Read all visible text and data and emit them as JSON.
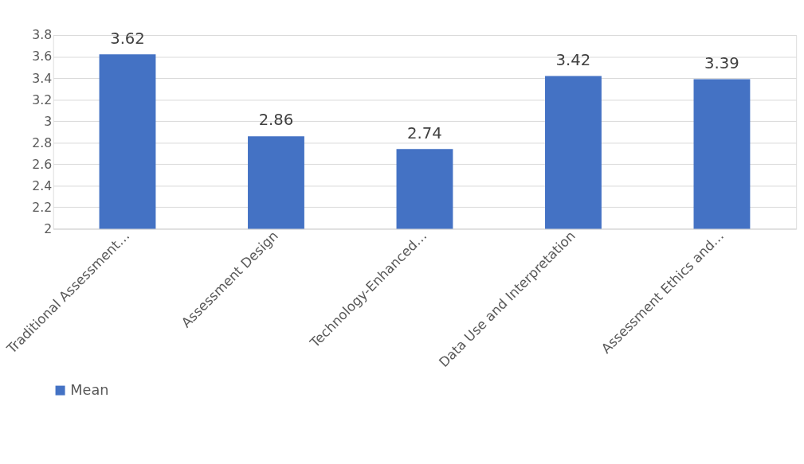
{
  "chart_data": {
    "type": "bar",
    "categories": [
      "Traditional Assessment…",
      "Assessment Design",
      "Technology-Enhanced…",
      "Data Use and Interpretation",
      "Assessment Ethics and…"
    ],
    "series": [
      {
        "name": "Mean",
        "color": "#4472c4",
        "values": [
          3.62,
          2.86,
          2.74,
          3.42,
          3.39
        ]
      }
    ],
    "ylim": [
      2,
      3.8
    ],
    "yticks": [
      2,
      2.2,
      2.4,
      2.6,
      2.8,
      3,
      3.2,
      3.4,
      3.6,
      3.8
    ],
    "grid": "y",
    "legend": "bottom",
    "data_labels": true
  }
}
